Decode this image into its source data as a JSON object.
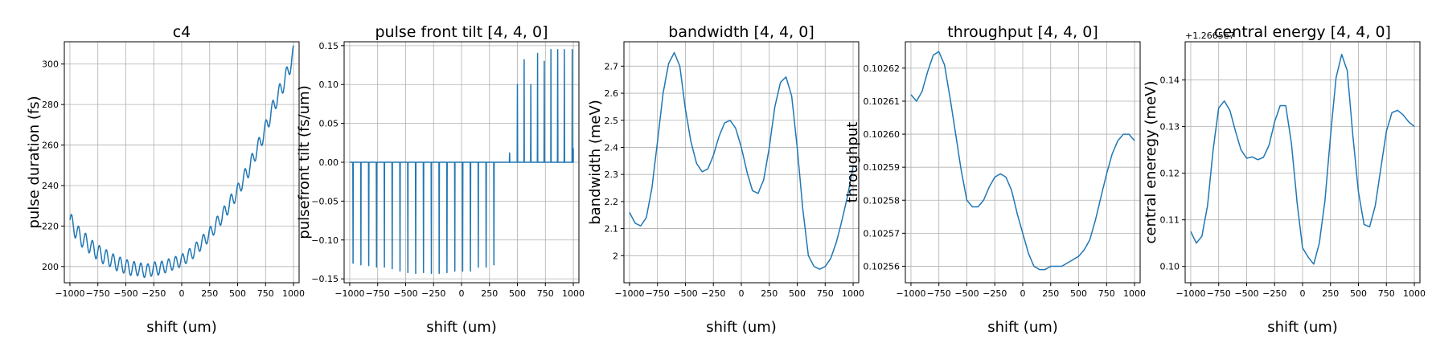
{
  "chart_data": [
    {
      "type": "line",
      "title": "c4",
      "xlabel": "shift (um)",
      "ylabel": "pulse duration (fs)",
      "xlim": [
        -1050,
        1050
      ],
      "ylim": [
        192,
        311
      ],
      "xticks": [
        -1000,
        -750,
        -500,
        -250,
        0,
        250,
        500,
        750,
        1000
      ],
      "yticks": [
        200,
        220,
        240,
        260,
        280,
        300
      ],
      "grid": true,
      "color": "#1f77b4",
      "curve": "ripple-parabola",
      "x": [
        -1000,
        -950,
        -900,
        -850,
        -800,
        -750,
        -700,
        -650,
        -600,
        -550,
        -500,
        -450,
        -400,
        -350,
        -300,
        -250,
        -200,
        -150,
        -100,
        -50,
        0,
        50,
        100,
        150,
        200,
        250,
        300,
        350,
        400,
        450,
        500,
        550,
        600,
        650,
        700,
        750,
        800,
        850,
        900,
        950,
        1000
      ],
      "y": [
        223,
        218,
        214,
        212,
        209,
        207,
        205,
        204,
        202,
        201,
        200,
        199,
        199,
        198,
        198,
        199,
        199,
        200,
        201,
        202,
        203,
        205,
        207,
        210,
        213,
        216,
        220,
        224,
        228,
        233,
        237,
        243,
        248,
        255,
        261,
        268,
        276,
        283,
        289,
        296,
        305
      ]
    },
    {
      "type": "line",
      "title": "pulse front tilt [4, 4, 0]",
      "xlabel": "shift (um)",
      "ylabel": "pulsefront tilt (fs/um)",
      "xlim": [
        -1050,
        1050
      ],
      "ylim": [
        -0.155,
        0.155
      ],
      "xticks": [
        -1000,
        -750,
        -500,
        -250,
        0,
        250,
        500,
        750,
        1000
      ],
      "yticks": [
        -0.15,
        -0.1,
        -0.05,
        0.0,
        0.05,
        0.1,
        0.15
      ],
      "ytick_labels": [
        "−0.15",
        "−0.10",
        "−0.05",
        "0.00",
        "0.05",
        "0.10",
        "0.15"
      ],
      "grid": true,
      "color": "#1f77b4",
      "curve": "spikes",
      "x": [
        -970,
        -900,
        -830,
        -760,
        -690,
        -620,
        -550,
        -480,
        -410,
        -340,
        -270,
        -200,
        -130,
        -60,
        10,
        80,
        150,
        220,
        290,
        430,
        500,
        560,
        620,
        680,
        740,
        800,
        860,
        920,
        990
      ],
      "y": [
        -0.13,
        -0.132,
        -0.133,
        -0.135,
        -0.135,
        -0.137,
        -0.14,
        -0.142,
        -0.143,
        -0.142,
        -0.143,
        -0.143,
        -0.142,
        -0.14,
        -0.14,
        -0.14,
        -0.135,
        -0.135,
        -0.132,
        0.012,
        0.1,
        0.132,
        0.1,
        0.14,
        0.13,
        0.145,
        0.145,
        0.145,
        0.145
      ]
    },
    {
      "type": "line",
      "title": "bandwidth [4, 4, 0]",
      "xlabel": "shift (um)",
      "ylabel": "bandwidth (meV)",
      "xlim": [
        -1050,
        1050
      ],
      "ylim": [
        1.9,
        2.79
      ],
      "xticks": [
        -1000,
        -750,
        -500,
        -250,
        0,
        250,
        500,
        750,
        1000
      ],
      "yticks": [
        2.0,
        2.1,
        2.2,
        2.3,
        2.4,
        2.5,
        2.6,
        2.7
      ],
      "grid": true,
      "color": "#1f77b4",
      "curve": "smooth",
      "x": [
        -1000,
        -950,
        -900,
        -850,
        -800,
        -750,
        -700,
        -650,
        -600,
        -550,
        -500,
        -450,
        -400,
        -350,
        -300,
        -250,
        -200,
        -150,
        -100,
        -50,
        0,
        50,
        100,
        150,
        200,
        250,
        300,
        350,
        400,
        450,
        500,
        550,
        600,
        650,
        700,
        750,
        800,
        850,
        900,
        950,
        1000
      ],
      "y": [
        2.16,
        2.12,
        2.11,
        2.14,
        2.25,
        2.42,
        2.6,
        2.71,
        2.75,
        2.7,
        2.54,
        2.42,
        2.34,
        2.31,
        2.32,
        2.37,
        2.44,
        2.49,
        2.5,
        2.47,
        2.4,
        2.31,
        2.24,
        2.23,
        2.28,
        2.4,
        2.55,
        2.64,
        2.66,
        2.59,
        2.4,
        2.17,
        2.0,
        1.96,
        1.95,
        1.96,
        1.99,
        2.05,
        2.13,
        2.22,
        2.33
      ]
    },
    {
      "type": "line",
      "title": "throughput [4, 4, 0]",
      "xlabel": "shift (um)",
      "ylabel": "throughput",
      "xlim": [
        -1050,
        1050
      ],
      "ylim": [
        0.102555,
        0.102628
      ],
      "xticks": [
        -1000,
        -750,
        -500,
        -250,
        0,
        250,
        500,
        750,
        1000
      ],
      "yticks": [
        0.10256,
        0.10257,
        0.10258,
        0.10259,
        0.1026,
        0.10261,
        0.10262
      ],
      "ytick_labels": [
        "0.10256",
        "0.10257",
        "0.10258",
        "0.10259",
        "0.10260",
        "0.10261",
        "0.10262"
      ],
      "grid": true,
      "color": "#1f77b4",
      "curve": "smooth",
      "x": [
        -1000,
        -950,
        -900,
        -850,
        -800,
        -750,
        -700,
        -650,
        -600,
        -550,
        -500,
        -450,
        -400,
        -350,
        -300,
        -250,
        -200,
        -150,
        -100,
        -50,
        0,
        50,
        100,
        150,
        200,
        250,
        300,
        350,
        400,
        450,
        500,
        550,
        600,
        650,
        700,
        750,
        800,
        850,
        900,
        950,
        1000
      ],
      "y": [
        0.102612,
        0.10261,
        0.102613,
        0.102619,
        0.102624,
        0.102625,
        0.102621,
        0.102611,
        0.1026,
        0.102589,
        0.10258,
        0.102578,
        0.102578,
        0.10258,
        0.102584,
        0.102587,
        0.102588,
        0.102587,
        0.102583,
        0.102576,
        0.10257,
        0.102564,
        0.10256,
        0.102559,
        0.102559,
        0.10256,
        0.10256,
        0.10256,
        0.102561,
        0.102562,
        0.102563,
        0.102565,
        0.102568,
        0.102574,
        0.102581,
        0.102588,
        0.102594,
        0.102598,
        0.1026,
        0.1026,
        0.102598
      ]
    },
    {
      "type": "line",
      "title": "central energy [4, 4, 0]",
      "xlabel": "shift (um)",
      "ylabel": "central eneregy (meV)",
      "offset_text": "+1.2665e7",
      "xlim": [
        -1050,
        1050
      ],
      "ylim": [
        0.0965,
        0.1482
      ],
      "xticks": [
        -1000,
        -750,
        -500,
        -250,
        0,
        250,
        500,
        750,
        1000
      ],
      "yticks": [
        0.1,
        0.11,
        0.12,
        0.13,
        0.14
      ],
      "ytick_labels": [
        "0.10",
        "0.11",
        "0.12",
        "0.13",
        "0.14"
      ],
      "grid": true,
      "color": "#1f77b4",
      "curve": "smooth",
      "x": [
        -1000,
        -950,
        -900,
        -850,
        -800,
        -750,
        -700,
        -650,
        -600,
        -550,
        -500,
        -450,
        -400,
        -350,
        -300,
        -250,
        -200,
        -150,
        -100,
        -50,
        0,
        50,
        100,
        150,
        200,
        250,
        300,
        350,
        400,
        450,
        500,
        550,
        600,
        650,
        700,
        750,
        800,
        850,
        900,
        950,
        1000
      ],
      "y": [
        0.1075,
        0.105,
        0.1065,
        0.113,
        0.125,
        0.134,
        0.1355,
        0.1335,
        0.129,
        0.125,
        0.1232,
        0.1235,
        0.1229,
        0.1234,
        0.126,
        0.131,
        0.1345,
        0.1345,
        0.1265,
        0.114,
        0.104,
        0.102,
        0.1005,
        0.105,
        0.114,
        0.128,
        0.1405,
        0.1455,
        0.142,
        0.128,
        0.116,
        0.109,
        0.1085,
        0.113,
        0.121,
        0.129,
        0.133,
        0.1335,
        0.1325,
        0.131,
        0.13
      ]
    }
  ]
}
